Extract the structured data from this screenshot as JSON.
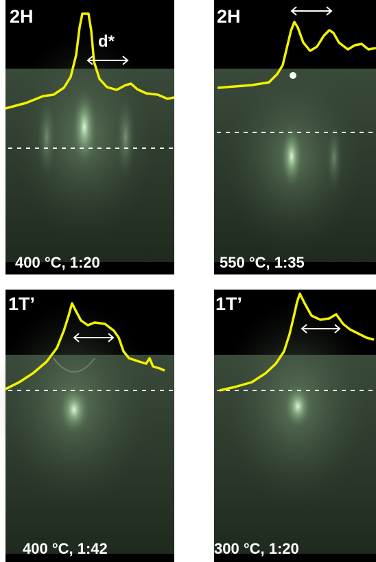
{
  "panels": [
    {
      "label": "2H",
      "caption": "400 °C, 1:20",
      "annotation": "d*"
    },
    {
      "label": "2H",
      "caption": "550 °C, 1:35"
    },
    {
      "label": "1T’",
      "caption": "400 °C, 1:42"
    },
    {
      "label": "1T’",
      "caption": "300 °C, 1:20"
    }
  ]
}
